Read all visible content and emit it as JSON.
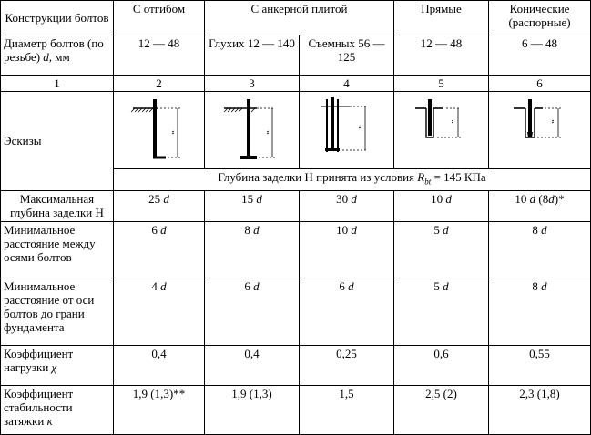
{
  "header": {
    "col0": "Конструкции болтов",
    "col1": "С отгибом",
    "col2": "С анкерной плитой",
    "col3": "Прямые",
    "col4": "Конические (распорные)"
  },
  "diameter": {
    "label_a": "Диаметр болтов (по резьбе) ",
    "label_var": "d",
    "label_b": ", мм",
    "v1": "12 — 48",
    "v2": "Глухих 12 — 140",
    "v3": "Съемных 56 — 125",
    "v4": "12 — 48",
    "v5": "6 — 48"
  },
  "numbers": [
    "1",
    "2",
    "3",
    "4",
    "5",
    "6"
  ],
  "sketches": {
    "label": "Эскизы",
    "depth_note_a": "Глубина заделки Н принята из условия ",
    "depth_note_r": "R",
    "depth_note_sub": "bt",
    "depth_note_b": " = 145 КПа"
  },
  "max_depth": {
    "label": "Максимальная глубина заделки Н",
    "v": [
      "25 ",
      "15 ",
      "30 ",
      "10 "
    ],
    "v5a": "10 ",
    "v5b": " (8",
    "v5c": ")*",
    "var": "d"
  },
  "min_axes": {
    "label": "Минимальное расстояние между осями болтов",
    "v": [
      "6 ",
      "8 ",
      "10 ",
      "5 ",
      "8 "
    ],
    "var": "d"
  },
  "min_edge": {
    "label": "Минимальное расстояние от оси болтов до грани фундамента",
    "v": [
      "4 ",
      "6 ",
      "6 ",
      "5 ",
      "8 "
    ],
    "var": "d"
  },
  "load_coef": {
    "label_a": "Коэффициент нагрузки ",
    "label_var": "χ",
    "v": [
      "0,4",
      "0,4",
      "0,25",
      "0,6",
      "0,55"
    ]
  },
  "stab_coef": {
    "label_a": "Коэффициент стабильности затяжки ",
    "label_var": "к",
    "v": [
      "1,9 (1,3)**",
      "1,9 (1,3)",
      "1,5",
      "2,5 (2)",
      "2,3 (1,8)"
    ]
  }
}
